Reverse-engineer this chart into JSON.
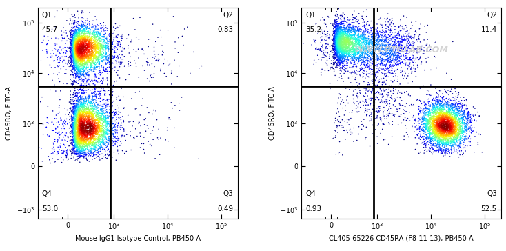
{
  "panel1": {
    "xlabel": "Mouse IgG1 Isotype Control, PB450-A",
    "ylabel": "CD45RO, FITC-A",
    "q_labels": [
      "Q1",
      "Q2",
      "Q3",
      "Q4"
    ],
    "q_values": [
      "45.7",
      "0.83",
      "0.49",
      "53.0"
    ],
    "gate_x": 850,
    "gate_y": 5500,
    "watermark": ""
  },
  "panel2": {
    "xlabel": "CL405-65226 CD45RA (F8-11-13), PB450-A",
    "ylabel": "CD45RO, FITC-A",
    "q_labels": [
      "Q1",
      "Q2",
      "Q3",
      "Q4"
    ],
    "q_values": [
      "35.2",
      "11.4",
      "52.5",
      "0.93"
    ],
    "gate_x": 850,
    "gate_y": 5500,
    "watermark": "WWW.PTGLAB.COM"
  },
  "xlim_left": -500,
  "xlim_right": 200000,
  "ylim_bottom": -1500,
  "ylim_top": 200000,
  "linthresh_x": 300,
  "linthresh_y": 300,
  "xticks": [
    0,
    1000,
    10000,
    100000
  ],
  "yticks": [
    -1000,
    0,
    1000,
    10000,
    100000
  ],
  "background_color": "#ffffff",
  "dot_size": 1.2,
  "gate_lw": 2.0,
  "gate_color": "#000000",
  "label_fs": 7,
  "tick_fs": 7,
  "quad_fs": 7.5
}
